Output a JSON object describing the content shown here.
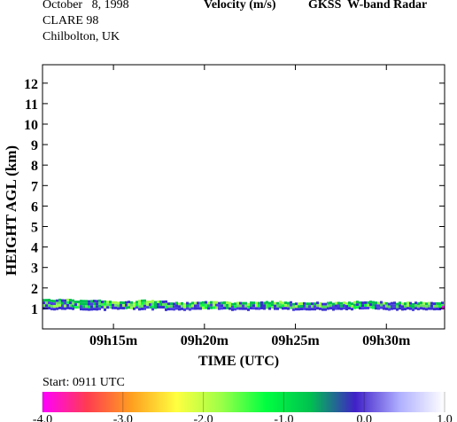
{
  "header": {
    "date": "October   8, 1998",
    "campaign": "CLARE 98",
    "location": "Chilbolton, UK",
    "quantity": "Velocity (m/s)",
    "instrument": "GKSS  W-band Radar"
  },
  "footer": {
    "start_text": "Start: 0911 UTC"
  },
  "colorbar": {
    "min": -4.0,
    "max": 1.0,
    "tick_values": [
      -4.0,
      -3.0,
      -2.0,
      -1.0,
      0.0,
      1.0
    ],
    "tick_labels": [
      "-4.0",
      "-3.0",
      "-2.0",
      "-1.0",
      "0.0",
      "1.0"
    ],
    "stops": [
      "#ff00ff",
      "#ff3c50",
      "#ffa020",
      "#ffff40",
      "#9cff48",
      "#00ff40",
      "#00c050",
      "#4020c8",
      "#b0b0ff",
      "#ffffff"
    ]
  },
  "chart_data": {
    "type": "heatmap",
    "title": "Velocity (m/s)",
    "xlabel": "TIME (UTC)",
    "ylabel": "HEIGHT AGL (km)",
    "x_range": [
      "09h11m",
      "09h33m"
    ],
    "x_ticks": [
      "09h15m",
      "09h20m",
      "09h25m",
      "09h30m"
    ],
    "x_tick_minutes": [
      15,
      20,
      25,
      30
    ],
    "x_min_minutes": 11.1,
    "x_max_minutes": 33.2,
    "ylim": [
      0,
      12.9
    ],
    "y_ticks": [
      1,
      2,
      3,
      4,
      5,
      6,
      7,
      8,
      9,
      10,
      11,
      12
    ],
    "y_tick_labels": [
      "1",
      "2",
      "3",
      "4",
      "5",
      "6",
      "7",
      "8",
      "9",
      "10",
      "11",
      "12"
    ],
    "echo_layer": {
      "bottom_km": 1.0,
      "top_km": [
        1.45,
        1.4,
        1.35,
        1.4,
        1.3,
        1.35,
        1.3,
        1.35,
        1.3,
        1.3,
        1.35,
        1.3,
        1.3
      ],
      "dominant_velocities_m_s": [
        -1.2,
        -0.8,
        0.0,
        0.3
      ]
    }
  }
}
